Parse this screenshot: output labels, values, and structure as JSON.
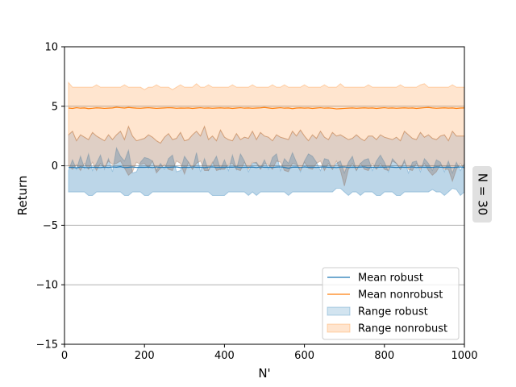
{
  "chart_data": {
    "type": "area",
    "xlabel": "N'",
    "ylabel": "Return",
    "xlim": [
      0,
      1000
    ],
    "ylim": [
      -15,
      10
    ],
    "xticks": [
      0,
      200,
      400,
      600,
      800,
      1000
    ],
    "yticks": [
      10,
      5,
      0,
      -5,
      -10,
      -15
    ],
    "grid": "horizontal",
    "legend_position": "lower-right",
    "facet_label": "N = 30",
    "colors": {
      "robust_line": "#1f77b4",
      "robust_fill": "#1f77b4",
      "nonrobust_line": "#ff7f0e",
      "nonrobust_fill": "#ff7f0e",
      "grid": "#b0b0b0"
    },
    "x": [
      10,
      20,
      30,
      40,
      50,
      60,
      70,
      80,
      90,
      100,
      110,
      120,
      130,
      140,
      150,
      160,
      170,
      180,
      190,
      200,
      210,
      220,
      230,
      240,
      250,
      260,
      270,
      280,
      290,
      300,
      310,
      320,
      330,
      340,
      350,
      360,
      370,
      380,
      390,
      400,
      410,
      420,
      430,
      440,
      450,
      460,
      470,
      480,
      490,
      500,
      510,
      520,
      530,
      540,
      550,
      560,
      570,
      580,
      590,
      600,
      610,
      620,
      630,
      640,
      650,
      660,
      670,
      680,
      690,
      700,
      710,
      720,
      730,
      740,
      750,
      760,
      770,
      780,
      790,
      800,
      810,
      820,
      830,
      840,
      850,
      860,
      870,
      880,
      890,
      900,
      910,
      920,
      930,
      940,
      950,
      960,
      970,
      980,
      990,
      1000
    ],
    "series": [
      {
        "name": "Mean robust",
        "kind": "line",
        "values": [
          -0.15,
          -0.12,
          -0.18,
          -0.1,
          -0.14,
          -0.16,
          -0.12,
          -0.13,
          -0.15,
          -0.11,
          -0.14,
          -0.1,
          -0.12,
          -0.08,
          -0.15,
          -0.13,
          -0.1,
          -0.14,
          -0.12,
          -0.13,
          -0.11,
          -0.15,
          -0.1,
          -0.14,
          -0.12,
          -0.13,
          -0.11,
          -0.1,
          -0.15,
          -0.12,
          -0.14,
          -0.1,
          -0.13,
          -0.12,
          -0.15,
          -0.11,
          -0.1,
          -0.14,
          -0.12,
          -0.13,
          -0.11,
          -0.12,
          -0.1,
          -0.14,
          -0.13,
          -0.12,
          -0.11,
          -0.15,
          -0.1,
          -0.13,
          -0.12,
          -0.14,
          -0.11,
          -0.1,
          -0.13,
          -0.2,
          -0.12,
          -0.11,
          -0.15,
          -0.1,
          -0.13,
          -0.12,
          -0.14,
          -0.11,
          -0.1,
          -0.13,
          -0.12,
          -0.15,
          -0.11,
          -0.1,
          -0.14,
          -0.12,
          -0.13,
          -0.11,
          -0.1,
          -0.15,
          -0.12,
          -0.14,
          -0.11,
          -0.13,
          -0.1,
          -0.12,
          -0.14,
          -0.11,
          -0.13,
          -0.12,
          -0.1,
          -0.15,
          -0.11,
          -0.13,
          -0.12,
          -0.14,
          -0.1,
          -0.12,
          -0.13,
          -0.11,
          -0.15,
          -0.12,
          -0.1,
          -0.13
        ]
      },
      {
        "name": "Mean nonrobust",
        "kind": "line",
        "values": [
          4.85,
          4.82,
          4.88,
          4.84,
          4.86,
          4.8,
          4.83,
          4.87,
          4.85,
          4.82,
          4.84,
          4.86,
          4.92,
          4.88,
          4.85,
          4.9,
          4.87,
          4.84,
          4.83,
          4.86,
          4.88,
          4.85,
          4.82,
          4.84,
          4.86,
          4.88,
          4.87,
          4.83,
          4.85,
          4.84,
          4.86,
          4.82,
          4.85,
          4.88,
          4.84,
          4.86,
          4.83,
          4.85,
          4.87,
          4.84,
          4.86,
          4.82,
          4.85,
          4.88,
          4.84,
          4.86,
          4.83,
          4.85,
          4.87,
          4.9,
          4.86,
          4.82,
          4.85,
          4.88,
          4.84,
          4.86,
          4.8,
          4.85,
          4.87,
          4.84,
          4.86,
          4.82,
          4.85,
          4.88,
          4.84,
          4.86,
          4.83,
          4.78,
          4.8,
          4.82,
          4.84,
          4.86,
          4.83,
          4.85,
          4.87,
          4.84,
          4.86,
          4.82,
          4.85,
          4.88,
          4.84,
          4.86,
          4.83,
          4.85,
          4.87,
          4.84,
          4.86,
          4.82,
          4.85,
          4.88,
          4.9,
          4.86,
          4.83,
          4.85,
          4.87,
          4.84,
          4.86,
          4.82,
          4.85,
          4.86
        ]
      },
      {
        "name": "Range robust",
        "kind": "band",
        "lower": [
          -2.2,
          -2.2,
          -2.2,
          -2.2,
          -2.2,
          -2.5,
          -2.5,
          -2.2,
          -2.2,
          -2.2,
          -2.2,
          -2.2,
          -2.2,
          -2.2,
          -2.5,
          -2.5,
          -2.2,
          -2.2,
          -2.2,
          -2.5,
          -2.5,
          -2.2,
          -2.2,
          -2.2,
          -2.2,
          -2.2,
          -2.2,
          -2.2,
          -2.2,
          -2.2,
          -2.2,
          -2.2,
          -2.2,
          -2.2,
          -2.2,
          -2.2,
          -2.5,
          -2.5,
          -2.5,
          -2.5,
          -2.2,
          -2.2,
          -2.2,
          -2.2,
          -2.2,
          -2.5,
          -2.2,
          -2.5,
          -2.2,
          -2.2,
          -2.2,
          -2.2,
          -2.2,
          -2.2,
          -2.2,
          -2.5,
          -2.2,
          -2.2,
          -2.2,
          -2.2,
          -2.2,
          -2.2,
          -2.2,
          -2.2,
          -2.2,
          -2.2,
          -2.2,
          -1.9,
          -1.9,
          -2.2,
          -2.5,
          -2.2,
          -2.2,
          -2.5,
          -2.2,
          -2.2,
          -2.2,
          -2.5,
          -2.5,
          -2.2,
          -2.2,
          -2.2,
          -2.5,
          -2.5,
          -2.2,
          -2.2,
          -2.2,
          -2.2,
          -2.2,
          -2.2,
          -2.2,
          -2.0,
          -2.2,
          -2.2,
          -2.5,
          -2.2,
          -1.9,
          -2.0,
          -2.5,
          -2.2
        ],
        "upper": [
          -0.4,
          0.5,
          -0.3,
          0.8,
          -0.2,
          1.0,
          -0.4,
          0.2,
          0.9,
          -0.3,
          0.6,
          -0.5,
          1.5,
          0.8,
          0.4,
          1.3,
          -0.6,
          -0.5,
          0.3,
          0.7,
          0.6,
          0.4,
          -0.4,
          0.2,
          -0.3,
          0.6,
          0.9,
          -0.5,
          -0.4,
          0.8,
          0.3,
          -0.3,
          1.1,
          -0.5,
          0.6,
          -0.4,
          0.2,
          0.8,
          -0.3,
          0.5,
          -0.4,
          0.9,
          -0.3,
          1.0,
          0.4,
          -0.5,
          0.2,
          0.3,
          -0.2,
          0.5,
          -0.3,
          0.7,
          1.0,
          -0.4,
          0.6,
          0.2,
          1.1,
          0.3,
          -0.5,
          0.4,
          1.0,
          0.8,
          0.3,
          -0.4,
          0.6,
          0.5,
          -0.3,
          0.2,
          0.4,
          -0.6,
          0.3,
          0.8,
          -0.4,
          0.2,
          0.5,
          0.6,
          -0.4,
          0.4,
          0.9,
          0.3,
          -0.5,
          0.6,
          0.2,
          -0.3,
          0.5,
          -0.6,
          0.3,
          0.4,
          -0.5,
          0.6,
          0.2,
          -0.4,
          0.5,
          0.3,
          -0.5,
          0.4,
          -0.6,
          0.3,
          -0.4,
          0.2
        ]
      },
      {
        "name": "Range nonrobust",
        "kind": "band",
        "lower": [
          0.0,
          -0.3,
          0.1,
          -0.4,
          0.2,
          -0.3,
          0.3,
          -0.4,
          0.2,
          -0.2,
          0.4,
          0.1,
          0.2,
          0.4,
          -0.2,
          -0.8,
          -0.5,
          0.3,
          0.1,
          0.2,
          -0.2,
          0.4,
          -0.6,
          -0.2,
          0.1,
          -0.3,
          -0.4,
          0.4,
          0.2,
          -0.7,
          0.3,
          -0.3,
          0.2,
          0.4,
          -0.4,
          -0.4,
          0.3,
          -0.4,
          -0.3,
          -0.3,
          0.1,
          0.2,
          -0.3,
          -0.4,
          0.3,
          -0.3,
          0.3,
          0.2,
          -0.3,
          0.2,
          0.1,
          -0.3,
          0.4,
          0.3,
          -0.4,
          -0.5,
          0.2,
          0.1,
          -0.4,
          0.3,
          -0.2,
          -0.3,
          0.2,
          0.4,
          -0.4,
          0.2,
          -0.3,
          0.4,
          -0.4,
          -1.7,
          -0.3,
          0.2,
          -0.4,
          0.2,
          -0.3,
          -0.4,
          0.2,
          -0.3,
          0.2,
          -0.3,
          -0.4,
          0.4,
          0.2,
          -0.3,
          0.3,
          -0.3,
          -0.4,
          0.2,
          -0.3,
          0.2,
          -0.4,
          -0.8,
          -0.5,
          0.1,
          -0.3,
          -0.3,
          -1.3,
          -0.3,
          0.2,
          -0.3
        ],
        "upper_low": [
          2.6,
          2.9,
          2.1,
          2.6,
          2.4,
          2.2,
          2.8,
          2.5,
          2.3,
          2.1,
          2.6,
          2.2,
          2.6,
          2.9,
          2.2,
          3.3,
          2.5,
          2.1,
          2.2,
          2.3,
          2.6,
          2.4,
          2.1,
          1.9,
          2.4,
          2.7,
          2.2,
          2.3,
          2.8,
          2.1,
          2.2,
          2.6,
          2.9,
          2.5,
          3.3,
          2.2,
          2.5,
          2.1,
          3.0,
          2.4,
          2.2,
          2.1,
          2.7,
          2.2,
          2.4,
          2.3,
          2.9,
          2.2,
          2.8,
          2.5,
          2.4,
          2.1,
          2.6,
          2.4,
          2.3,
          2.2,
          2.9,
          2.5,
          3.0,
          2.5,
          2.1,
          2.6,
          2.3,
          2.9,
          2.4,
          2.2,
          2.8,
          2.5,
          2.6,
          2.4,
          2.2,
          2.3,
          2.6,
          2.3,
          2.1,
          2.5,
          2.5,
          2.2,
          2.6,
          2.4,
          2.3,
          2.2,
          2.4,
          2.1,
          2.9,
          2.6,
          2.3,
          2.2,
          2.8,
          2.4,
          2.6,
          2.3,
          2.2,
          2.5,
          2.6,
          2.1,
          2.9,
          2.5,
          2.5,
          2.5
        ],
        "upper": [
          7.0,
          6.6,
          6.6,
          6.6,
          6.6,
          6.6,
          6.6,
          6.8,
          6.6,
          6.6,
          6.6,
          6.6,
          6.6,
          6.6,
          6.8,
          6.6,
          6.6,
          6.6,
          6.6,
          6.4,
          6.6,
          6.6,
          6.8,
          6.6,
          6.6,
          6.6,
          6.4,
          6.6,
          6.8,
          6.6,
          6.6,
          6.6,
          6.9,
          6.6,
          6.6,
          6.8,
          6.6,
          6.6,
          6.6,
          6.6,
          6.6,
          6.8,
          6.6,
          6.6,
          6.6,
          6.6,
          6.8,
          6.6,
          6.6,
          6.6,
          6.6,
          6.8,
          6.6,
          6.6,
          6.8,
          6.6,
          6.6,
          6.6,
          6.6,
          6.8,
          6.6,
          6.6,
          6.6,
          6.6,
          6.8,
          6.6,
          6.6,
          6.6,
          6.9,
          6.6,
          6.6,
          6.6,
          6.6,
          6.6,
          6.6,
          6.8,
          6.6,
          6.6,
          6.6,
          6.6,
          6.6,
          6.6,
          6.6,
          6.8,
          6.6,
          6.6,
          6.6,
          6.6,
          6.8,
          6.9,
          6.6,
          6.6,
          6.6,
          6.6,
          6.6,
          6.6,
          6.8,
          6.6,
          6.6,
          6.6
        ]
      }
    ]
  }
}
